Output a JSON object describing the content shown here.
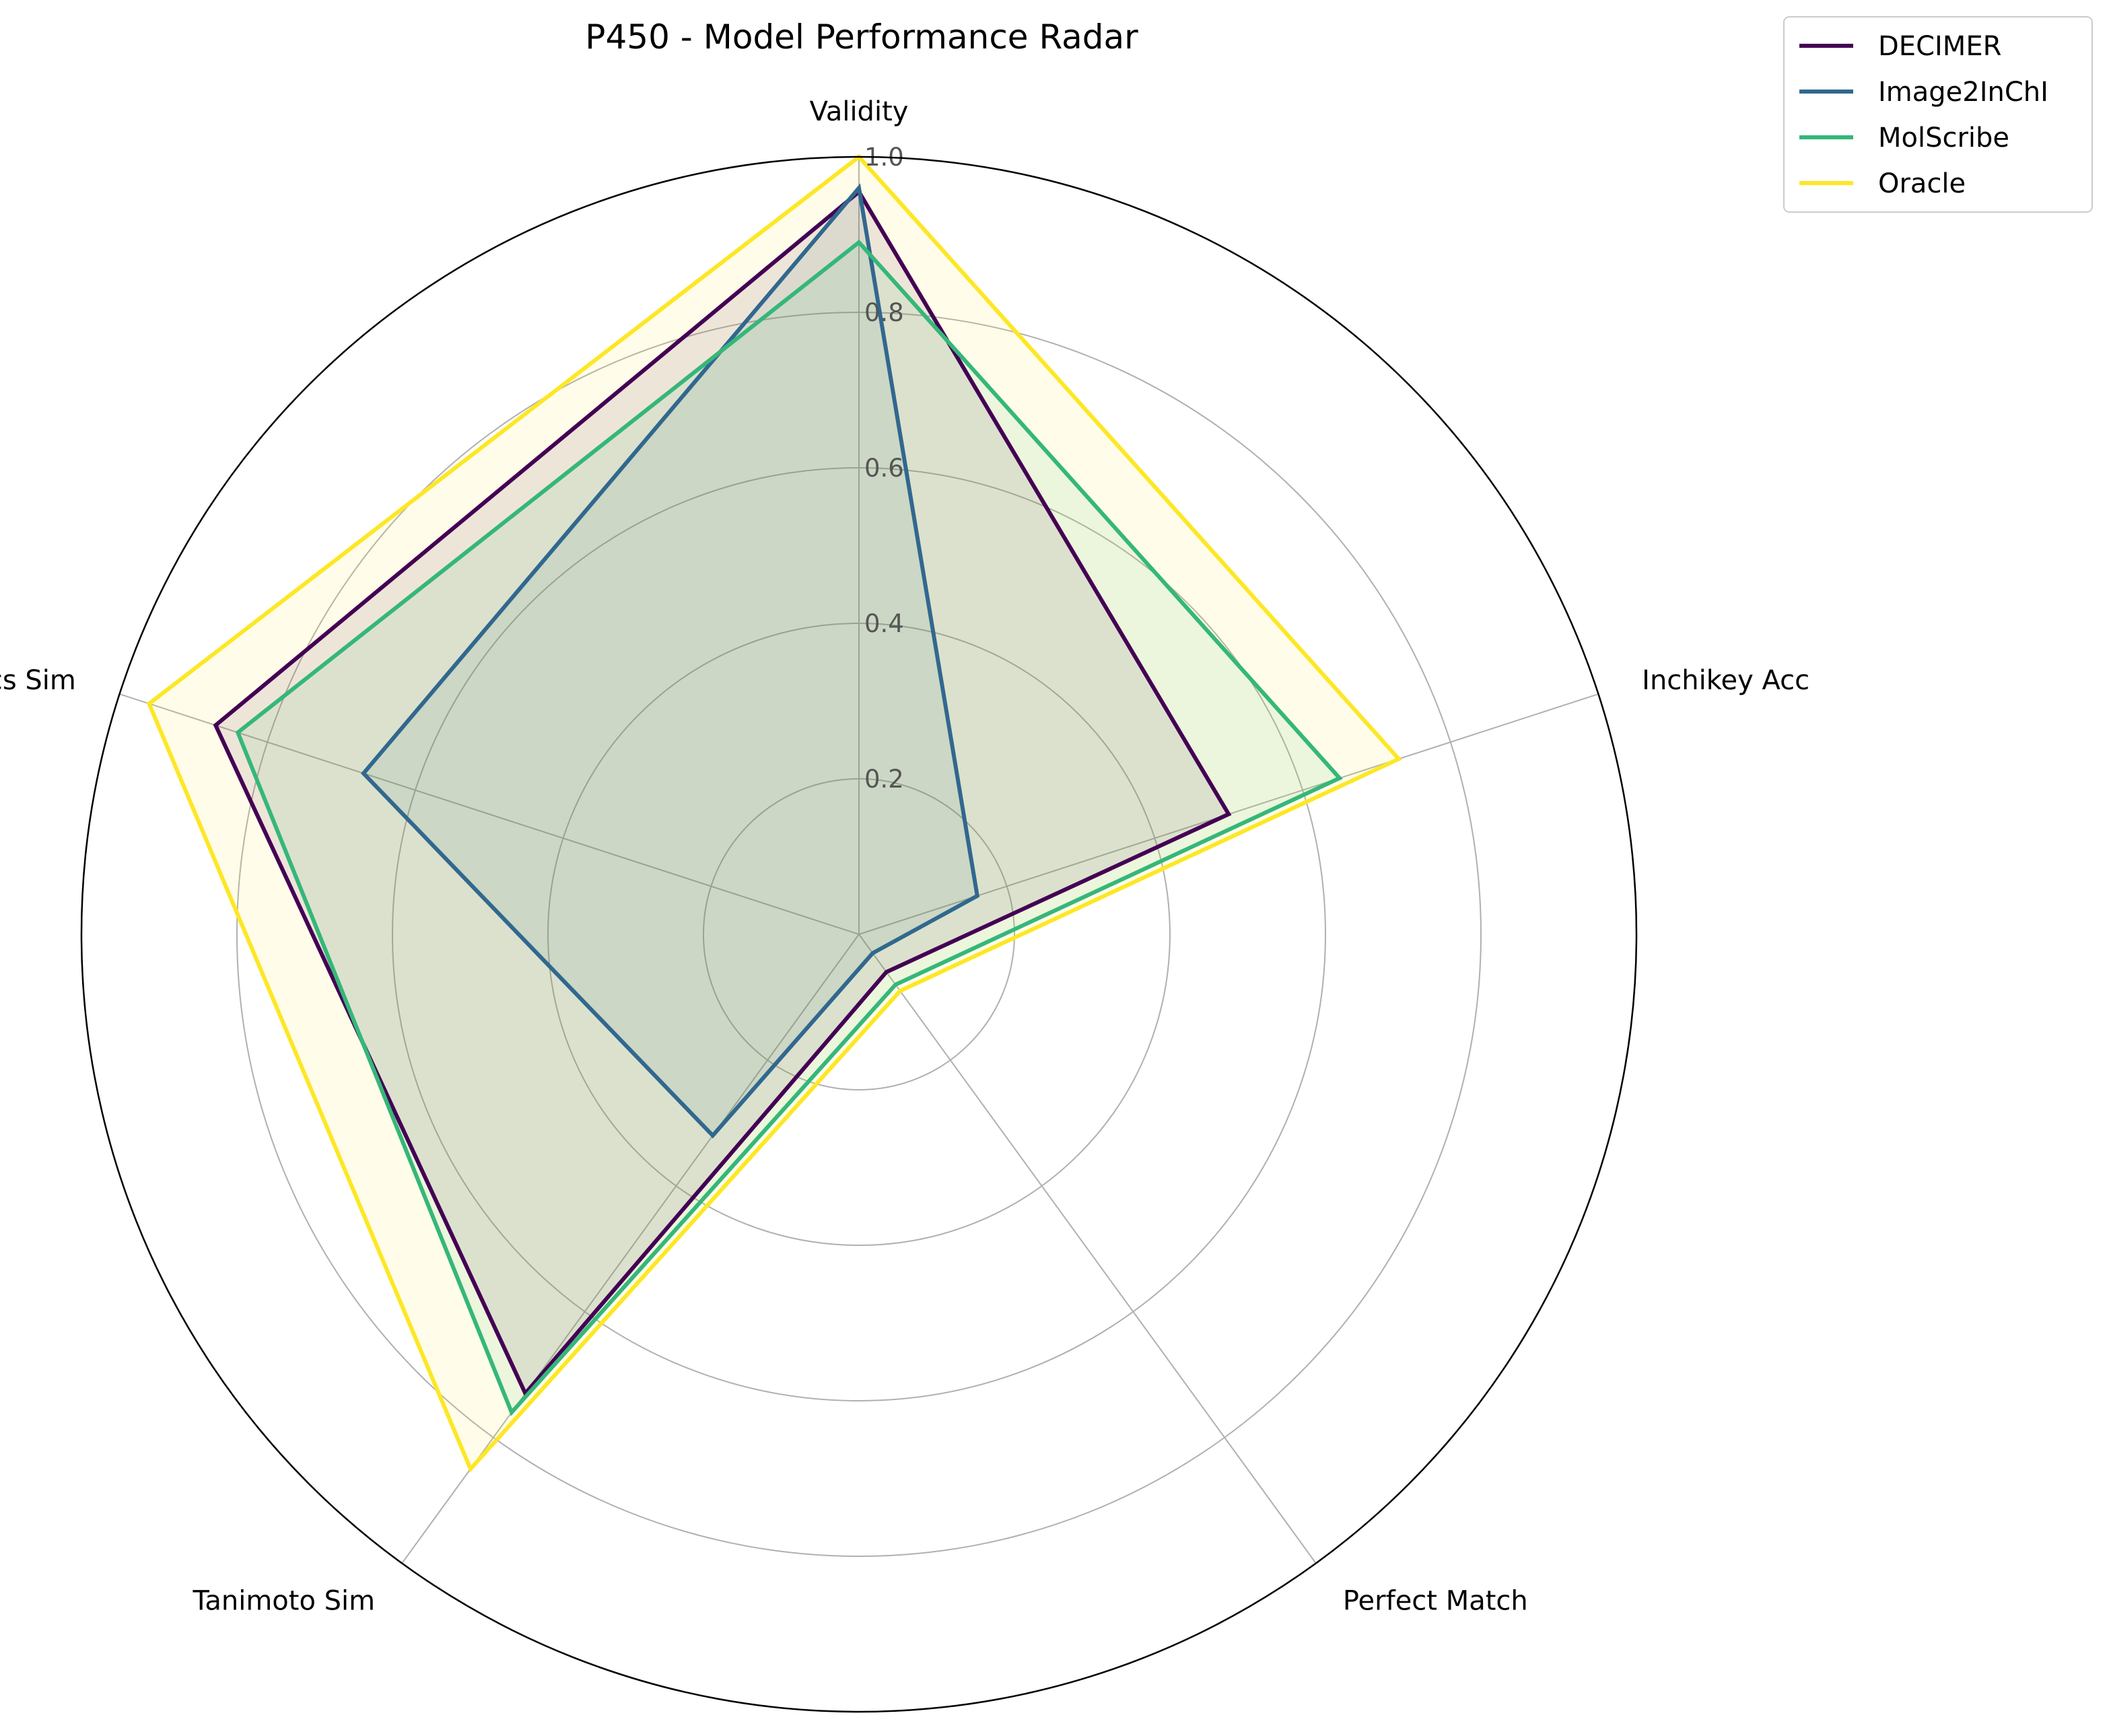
{
  "chart_data": {
    "type": "radar",
    "title": "P450 - Model Performance Radar",
    "axes": [
      "Validity",
      "Inchikey Acc",
      "Perfect Match",
      "Tanimoto Sim",
      "Mcs Sim"
    ],
    "rlim": [
      0,
      1.0
    ],
    "rticks": [
      0.2,
      0.4,
      0.6,
      0.8,
      1.0
    ],
    "rtick_labels": [
      "0.2",
      "0.4",
      "0.6",
      "0.8",
      "1.0"
    ],
    "grid": true,
    "legend": "top-right",
    "series": [
      {
        "name": "DECIMER",
        "color": "#440154",
        "values": [
          0.955,
          0.5,
          0.06,
          0.73,
          0.87
        ]
      },
      {
        "name": "Image2InChI",
        "color": "#31688e",
        "values": [
          0.96,
          0.16,
          0.03,
          0.32,
          0.67
        ]
      },
      {
        "name": "MolScribe",
        "color": "#35b779",
        "values": [
          0.89,
          0.65,
          0.08,
          0.76,
          0.84
        ]
      },
      {
        "name": "Oracle",
        "color": "#fde725",
        "values": [
          1.0,
          0.73,
          0.09,
          0.85,
          0.96
        ]
      }
    ]
  }
}
